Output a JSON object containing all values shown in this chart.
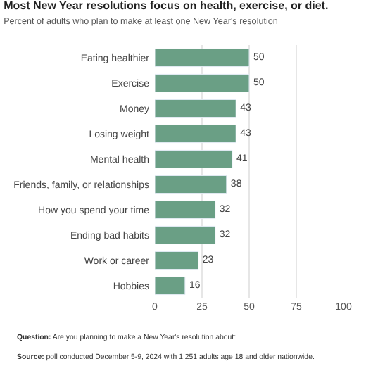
{
  "chart_data": {
    "type": "bar",
    "orientation": "horizontal",
    "title": "Most New Year resolutions focus on health, exercise, or diet.",
    "subtitle": "Percent of adults who plan to make at least one New Year's resolution",
    "categories": [
      "Eating healthier",
      "Exercise",
      "Money",
      "Losing weight",
      "Mental health",
      "Friends, family, or relationships",
      "How you spend your time",
      "Ending bad habits",
      "Work or career",
      "Hobbies"
    ],
    "values": [
      50,
      50,
      43,
      43,
      41,
      38,
      32,
      32,
      23,
      16
    ],
    "color": "#6a9f85",
    "xlim": [
      0,
      100
    ],
    "xticks": [
      0,
      25,
      50,
      75,
      100
    ],
    "grid": "x",
    "data_labels": true,
    "legend": false,
    "annotations": [
      "Question: Are you planning to make a New Year's resolution about:",
      "Source: poll conducted December 5-9, 2024 with 1,251 adults age 18 and older nationwide."
    ]
  }
}
